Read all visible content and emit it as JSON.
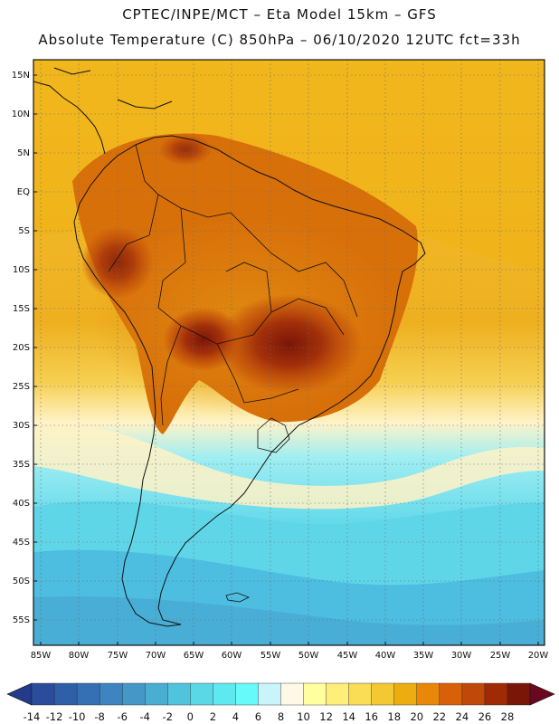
{
  "title": {
    "line1": "CPTEC/INPE/MCT –  Eta Model 15km – GFS",
    "line2": "Absolute Temperature (C) 850hPa – 06/10/2020 12UTC fct=33h"
  },
  "map": {
    "lat_labels": [
      "15N",
      "10N",
      "5N",
      "EQ",
      "5S",
      "10S",
      "15S",
      "20S",
      "25S",
      "30S",
      "35S",
      "40S",
      "45S",
      "50S",
      "55S"
    ],
    "lon_labels": [
      "85W",
      "80W",
      "75W",
      "70W",
      "65W",
      "60W",
      "55W",
      "50W",
      "45W",
      "40W",
      "35W",
      "30W",
      "25W",
      "20W"
    ],
    "region": "South America",
    "variable": "Absolute Temperature (C) 850hPa"
  },
  "colorbar": {
    "labels": [
      "-14",
      "-12",
      "-10",
      "-8",
      "-6",
      "-4",
      "-2",
      "0",
      "2",
      "4",
      "6",
      "8",
      "10",
      "12",
      "14",
      "16",
      "18",
      "20",
      "22",
      "24",
      "26",
      "28"
    ],
    "colors": [
      "#2b4c9a",
      "#2f5fa8",
      "#3570b5",
      "#3d84c0",
      "#4498c8",
      "#4aaed2",
      "#50c4dc",
      "#5ad8e6",
      "#5ee8f0",
      "#66fafa",
      "#c8f4fa",
      "#fff8e6",
      "#ffffa0",
      "#ffee7a",
      "#fbdc55",
      "#f3c832",
      "#edac10",
      "#e98808",
      "#d86008",
      "#c04808",
      "#a02a06",
      "#7a1608"
    ],
    "under_color": "#243a8a",
    "over_color": "#6a0820"
  }
}
